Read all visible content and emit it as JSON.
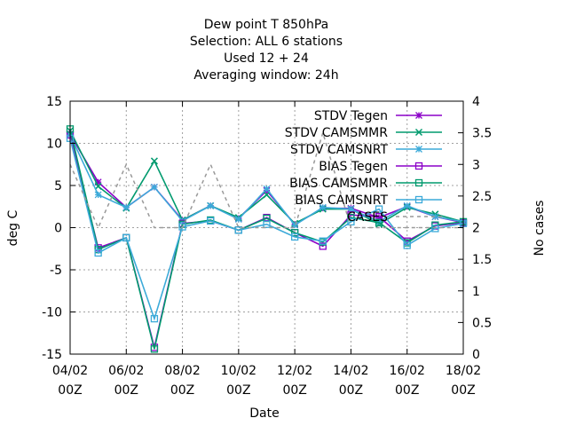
{
  "chart_data": {
    "type": "line",
    "title_lines": [
      "Dew point T 850hPa",
      "Selection: ALL      6 stations",
      "Used  12 + 24",
      "Averaging window: 24h"
    ],
    "xlabel": "Date",
    "ylabel": "deg C",
    "y2label": "No cases",
    "x": [
      "04/02 00Z",
      "05/02 00Z",
      "06/02 00Z",
      "07/02 00Z",
      "08/02 00Z",
      "09/02 00Z",
      "10/02 00Z",
      "11/02 00Z",
      "12/02 00Z",
      "13/02 00Z",
      "14/02 00Z",
      "15/02 00Z",
      "16/02 00Z",
      "17/02 00Z",
      "18/02 00Z"
    ],
    "xtick_labels": [
      {
        "x": "04/02 00Z",
        "line1": "04/02",
        "line2": "00Z"
      },
      {
        "x": "06/02 00Z",
        "line1": "06/02",
        "line2": "00Z"
      },
      {
        "x": "08/02 00Z",
        "line1": "08/02",
        "line2": "00Z"
      },
      {
        "x": "10/02 00Z",
        "line1": "10/02",
        "line2": "00Z"
      },
      {
        "x": "12/02 00Z",
        "line1": "12/02",
        "line2": "00Z"
      },
      {
        "x": "14/02 00Z",
        "line1": "14/02",
        "line2": "00Z"
      },
      {
        "x": "16/02 00Z",
        "line1": "16/02",
        "line2": "00Z"
      },
      {
        "x": "18/02 00Z",
        "line1": "18/02",
        "line2": "00Z"
      }
    ],
    "ylim": [
      -15,
      15
    ],
    "yticks": [
      15,
      10,
      5,
      0,
      -5,
      -10,
      -15
    ],
    "y2lim": [
      0,
      4
    ],
    "y2ticks": [
      "4",
      "3.5",
      "3",
      "2.5",
      "2",
      "1.5",
      "1",
      "0.5",
      "0"
    ],
    "grid": true,
    "legend_position": "top-right",
    "series": [
      {
        "name": "STDV Tegen",
        "marker": "star",
        "color": "#8b00c8",
        "axis": "y1",
        "values": [
          11.1,
          5.4,
          2.4,
          4.8,
          0.9,
          2.6,
          1.1,
          4.4,
          0.4,
          2.3,
          2.3,
          1.2,
          2.5,
          1.3,
          0.6
        ]
      },
      {
        "name": "STDV CAMSMMR",
        "marker": "x",
        "color": "#009a6e",
        "axis": "y1",
        "values": [
          11.5,
          4.9,
          2.3,
          7.9,
          0.9,
          2.6,
          1.2,
          3.9,
          0.5,
          2.2,
          2.2,
          0.4,
          2.4,
          1.6,
          0.7
        ]
      },
      {
        "name": "STDV CAMSNRT",
        "marker": "asterisk",
        "color": "#3caad9",
        "axis": "y1",
        "values": [
          11.0,
          3.9,
          2.4,
          4.8,
          0.8,
          2.6,
          1.0,
          4.6,
          0.3,
          2.4,
          2.2,
          0.7,
          2.6,
          1.3,
          0.7
        ]
      },
      {
        "name": "BIAS Tegen",
        "marker": "square",
        "color": "#8b00c8",
        "axis": "y1",
        "values": [
          11.0,
          -2.4,
          -1.2,
          -14.2,
          0.5,
          0.8,
          -0.3,
          1.2,
          -0.6,
          -2.2,
          1.5,
          1.3,
          -1.6,
          0.2,
          0.6
        ]
      },
      {
        "name": "BIAS CAMSMMR",
        "marker": "square",
        "color": "#009a6e",
        "axis": "y1",
        "values": [
          11.7,
          -2.6,
          -1.2,
          -14.4,
          0.4,
          0.9,
          -0.3,
          1.1,
          -0.6,
          -1.7,
          1.2,
          0.6,
          -1.8,
          0.3,
          0.7
        ]
      },
      {
        "name": "BIAS CAMSNRT",
        "marker": "square",
        "color": "#3caad9",
        "axis": "y1",
        "values": [
          10.6,
          -3.0,
          -1.2,
          -10.8,
          0.1,
          0.8,
          -0.3,
          0.4,
          -1.1,
          -1.6,
          0.7,
          2.2,
          -2.1,
          -0.1,
          0.5
        ]
      },
      {
        "name": "CASES",
        "marker": "none",
        "color": "#999999",
        "axis": "y2",
        "dash": true,
        "values": [
          3.0,
          2.0,
          3.0,
          2.0,
          2.0,
          3.0,
          2.0,
          2.0,
          2.0,
          3.5,
          2.0,
          2.0,
          2.0,
          2.0,
          2.0
        ]
      }
    ]
  }
}
